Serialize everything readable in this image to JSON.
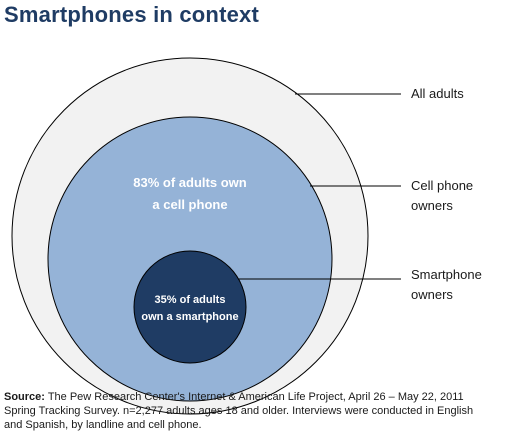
{
  "title": "Smartphones in context",
  "labels": {
    "all_adults": "All adults",
    "cell_owners_line1": "Cell phone",
    "cell_owners_line2": "owners",
    "smart_owners_line1": "Smartphone",
    "smart_owners_line2": "owners"
  },
  "circles": {
    "cell_line1": "83% of adults own",
    "cell_line2": "a cell phone",
    "smart_line1": "35% of adults",
    "smart_line2": "own a smartphone"
  },
  "source": {
    "label": "Source:",
    "line1": " The Pew Research Center's Internet & American Life Project, April 26 – May 22, 2011",
    "line2": "Spring Tracking Survey. n=2,277 adults ages 18 and older. Interviews were conducted in English",
    "line3": "and Spanish, by landline and cell phone."
  },
  "colors": {
    "outer_fill": "#f2f2f2",
    "middle_fill": "#95b3d7",
    "inner_fill": "#1f3c64",
    "title": "#1f3c64"
  },
  "shares": {
    "cell_phone_owners_pct": 83,
    "smartphone_owners_pct": 35
  }
}
